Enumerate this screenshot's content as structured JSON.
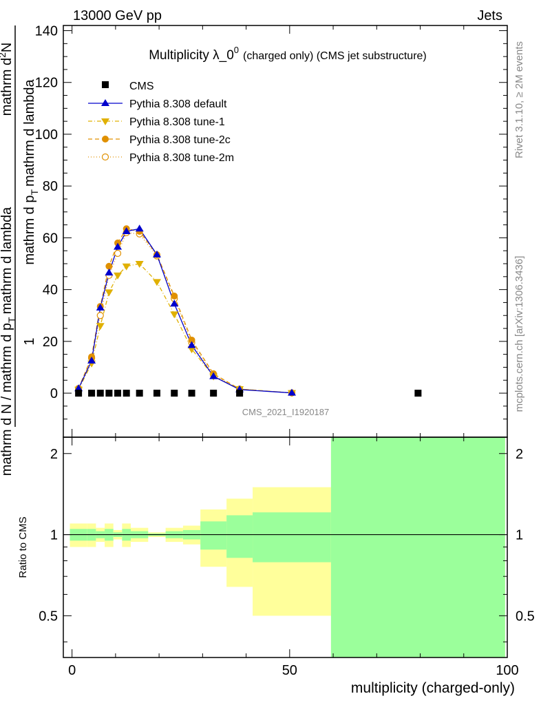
{
  "header": {
    "left": "13000 GeV pp",
    "right": "Jets"
  },
  "title": {
    "main": "Multiplicity λ_0",
    "sup": "0",
    "suffix": "(charged only) (CMS jet substructure)"
  },
  "ylabel": {
    "top_num": "1",
    "top_den": "mathrm d N / mathrm d p",
    "top_den_sub": "T",
    "top_den_tail": "mathrm d lambda",
    "num": "mathrm d",
    "num_sup": "2",
    "num_tail": "N",
    "den": "mathrm d p",
    "den_sub": "T",
    "den_tail": "mathrm d lambda",
    "frac_line1": "mathrm d",
    "frac_line2": "N"
  },
  "side_labels": {
    "rivet": "Rivet 3.1.10, ≥ 2M events",
    "mcplots": "mcplots.cern.ch [arXiv:1306.3436]"
  },
  "watermark": "CMS_2021_I1920187",
  "ratio_ylabel": "Ratio to CMS",
  "xlabel": "multiplicity (charged-only)",
  "legend": [
    {
      "label": "CMS"
    },
    {
      "label": "Pythia 8.308 default"
    },
    {
      "label": "Pythia 8.308 tune-1"
    },
    {
      "label": "Pythia 8.308 tune-2c"
    },
    {
      "label": "Pythia 8.308 tune-2m"
    }
  ],
  "chart_data": {
    "type": "scatter",
    "xlim": [
      -2,
      100
    ],
    "ylim": [
      -17,
      142
    ],
    "xticks": [
      0,
      50,
      100
    ],
    "yticks": [
      0,
      20,
      40,
      60,
      80,
      100,
      120,
      140
    ],
    "ratio_ylim": [
      0.35,
      2.3
    ],
    "ratio_yticks": [
      0.5,
      1,
      2
    ],
    "colors": {
      "cms": "#000000",
      "default": "#0000cc",
      "tune1": "#e0b000",
      "tune2c": "#e09000",
      "tune2m": "#e09000",
      "band_inner": "#9bff9b",
      "band_outer": "#ffff9b"
    },
    "series": [
      {
        "name": "CMS",
        "x": [
          1.5,
          4.5,
          6.5,
          8.5,
          10.5,
          12.5,
          15.5,
          19.5,
          23.5,
          27.5,
          32.5,
          38.5,
          79.5
        ],
        "y": [
          0,
          0,
          0,
          0,
          0,
          0,
          0,
          0,
          0,
          0,
          0,
          0,
          0
        ]
      },
      {
        "name": "Pythia 8.308 default",
        "x": [
          1.5,
          4.5,
          6.5,
          8.5,
          10.5,
          12.5,
          15.5,
          19.5,
          23.5,
          27.5,
          32.5,
          38.5,
          50.5
        ],
        "y": [
          1.8,
          12.5,
          33.0,
          46.5,
          56.5,
          62.5,
          63.5,
          53.5,
          34.5,
          18.5,
          6.5,
          1.4,
          0.1
        ]
      },
      {
        "name": "Pythia 8.308 tune-1",
        "x": [
          1.5,
          4.5,
          6.5,
          8.5,
          10.5,
          12.5,
          15.5,
          19.5,
          23.5,
          27.5,
          32.5,
          38.5,
          50.5
        ],
        "y": [
          1.4,
          11.5,
          26.0,
          39.0,
          45.5,
          49.0,
          50.0,
          43.0,
          30.5,
          17.0,
          6.5,
          1.6,
          0.1
        ]
      },
      {
        "name": "Pythia 8.308 tune-2c",
        "x": [
          1.5,
          4.5,
          6.5,
          8.5,
          10.5,
          12.5,
          15.5,
          19.5,
          23.5,
          27.5,
          32.5,
          38.5,
          50.5
        ],
        "y": [
          1.8,
          14.0,
          33.5,
          49.0,
          58.0,
          63.5,
          62.5,
          53.5,
          37.5,
          20.5,
          7.5,
          1.6,
          0.1
        ]
      },
      {
        "name": "Pythia 8.308 tune-2m",
        "x": [
          1.5,
          4.5,
          6.5,
          8.5,
          10.5,
          12.5,
          15.5,
          19.5,
          23.5,
          27.5,
          32.5,
          38.5,
          50.5
        ],
        "y": [
          1.8,
          13.5,
          30.0,
          45.5,
          54.0,
          62.0,
          61.5,
          53.0,
          36.5,
          19.5,
          7.0,
          1.5,
          0.1
        ]
      }
    ],
    "ratio_bands": [
      {
        "x0": -0.5,
        "x1": 3.5,
        "inner": [
          0.95,
          1.05
        ],
        "outer": [
          0.9,
          1.1
        ]
      },
      {
        "x0": 3.5,
        "x1": 5.5,
        "inner": [
          0.95,
          1.05
        ],
        "outer": [
          0.9,
          1.1
        ]
      },
      {
        "x0": 5.5,
        "x1": 7.5,
        "inner": [
          0.97,
          1.03
        ],
        "outer": [
          0.94,
          1.06
        ]
      },
      {
        "x0": 7.5,
        "x1": 9.5,
        "inner": [
          0.95,
          1.05
        ],
        "outer": [
          0.9,
          1.1
        ]
      },
      {
        "x0": 9.5,
        "x1": 11.5,
        "inner": [
          0.98,
          1.02
        ],
        "outer": [
          0.96,
          1.04
        ]
      },
      {
        "x0": 11.5,
        "x1": 13.5,
        "inner": [
          0.95,
          1.05
        ],
        "outer": [
          0.9,
          1.1
        ]
      },
      {
        "x0": 13.5,
        "x1": 17.5,
        "inner": [
          0.97,
          1.03
        ],
        "outer": [
          0.94,
          1.06
        ]
      },
      {
        "x0": 17.5,
        "x1": 21.5,
        "inner": [
          0.99,
          1.01
        ],
        "outer": [
          0.98,
          1.02
        ]
      },
      {
        "x0": 21.5,
        "x1": 25.5,
        "inner": [
          0.97,
          1.03
        ],
        "outer": [
          0.94,
          1.06
        ]
      },
      {
        "x0": 25.5,
        "x1": 29.5,
        "inner": [
          0.96,
          1.04
        ],
        "outer": [
          0.92,
          1.08
        ]
      },
      {
        "x0": 29.5,
        "x1": 35.5,
        "inner": [
          0.88,
          1.12
        ],
        "outer": [
          0.76,
          1.24
        ]
      },
      {
        "x0": 35.5,
        "x1": 41.5,
        "inner": [
          0.82,
          1.18
        ],
        "outer": [
          0.64,
          1.36
        ]
      },
      {
        "x0": 41.5,
        "x1": 59.5,
        "inner": [
          0.79,
          1.21
        ],
        "outer": [
          0.5,
          1.5
        ]
      },
      {
        "x0": 59.5,
        "x1": 99.5,
        "inner": [
          0.35,
          2.3
        ],
        "outer": [
          0.35,
          2.3
        ]
      }
    ]
  }
}
